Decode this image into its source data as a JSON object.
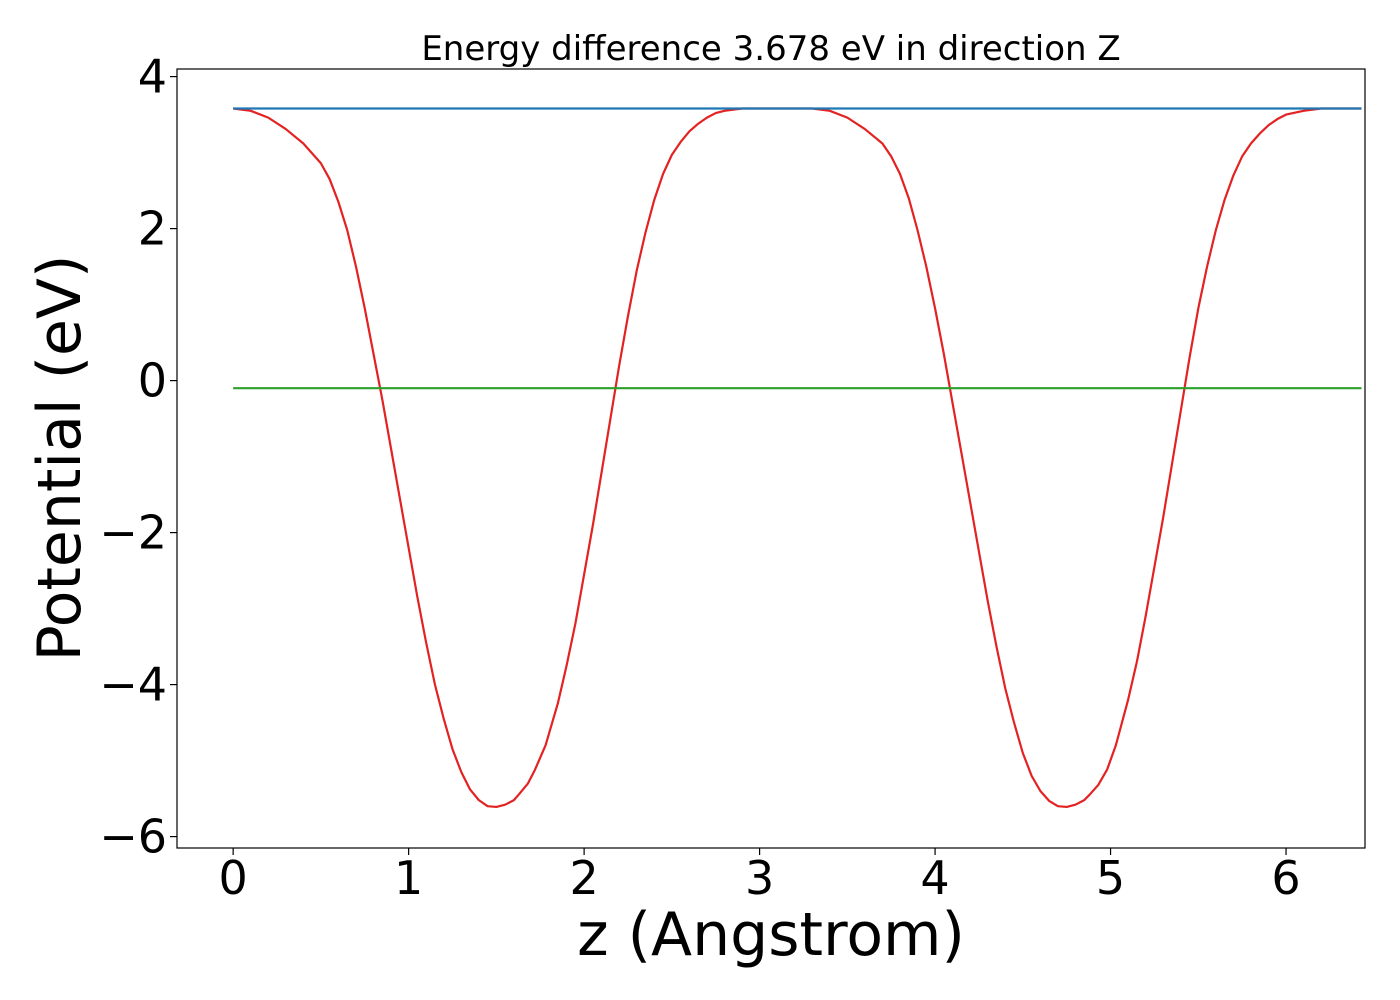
{
  "chart_data": {
    "type": "line",
    "title": "Energy difference 3.678 eV in direction Z",
    "xlabel": "z (Angstrom)",
    "ylabel": "Potential (eV)",
    "xlim": [
      -0.32,
      6.45
    ],
    "ylim": [
      -6.15,
      4.1
    ],
    "xticks": [
      0,
      1,
      2,
      3,
      4,
      5,
      6
    ],
    "yticks": [
      -6,
      -4,
      -2,
      0,
      2,
      4
    ],
    "ytick_labels": [
      "−6",
      "−4",
      "−2",
      "0",
      "2",
      "4"
    ],
    "grid": false,
    "legend": "none",
    "series": [
      {
        "color": "#e32222",
        "x": [
          0.0,
          0.1,
          0.2,
          0.3,
          0.4,
          0.5,
          0.55,
          0.6,
          0.65,
          0.7,
          0.75,
          0.8,
          0.85,
          0.9,
          0.95,
          1.0,
          1.05,
          1.1,
          1.15,
          1.2,
          1.25,
          1.3,
          1.35,
          1.4,
          1.45,
          1.5,
          1.55,
          1.6,
          1.63,
          1.68,
          1.72,
          1.78,
          1.85,
          1.9,
          1.95,
          2.0,
          2.05,
          2.1,
          2.15,
          2.2,
          2.25,
          2.3,
          2.35,
          2.4,
          2.45,
          2.5,
          2.55,
          2.6,
          2.65,
          2.7,
          2.75,
          2.8,
          2.9,
          3.0,
          3.1,
          3.2,
          3.25,
          3.3,
          3.4,
          3.5,
          3.6,
          3.7,
          3.75,
          3.8,
          3.85,
          3.9,
          3.95,
          4.0,
          4.05,
          4.1,
          4.15,
          4.2,
          4.25,
          4.3,
          4.35,
          4.4,
          4.45,
          4.5,
          4.55,
          4.6,
          4.65,
          4.7,
          4.75,
          4.8,
          4.85,
          4.88,
          4.93,
          4.98,
          5.03,
          5.1,
          5.15,
          5.2,
          5.25,
          5.3,
          5.35,
          5.4,
          5.45,
          5.5,
          5.55,
          5.6,
          5.65,
          5.7,
          5.75,
          5.8,
          5.85,
          5.9,
          5.95,
          6.0,
          6.1,
          6.2,
          6.3,
          6.43
        ],
        "y": [
          3.58,
          3.55,
          3.46,
          3.31,
          3.12,
          2.86,
          2.65,
          2.35,
          1.98,
          1.5,
          0.95,
          0.35,
          -0.25,
          -0.9,
          -1.55,
          -2.2,
          -2.85,
          -3.45,
          -4.0,
          -4.45,
          -4.85,
          -5.15,
          -5.38,
          -5.52,
          -5.6,
          -5.61,
          -5.58,
          -5.52,
          -5.44,
          -5.3,
          -5.12,
          -4.8,
          -4.25,
          -3.75,
          -3.2,
          -2.55,
          -1.9,
          -1.2,
          -0.5,
          0.2,
          0.85,
          1.45,
          1.95,
          2.38,
          2.72,
          2.97,
          3.14,
          3.28,
          3.38,
          3.46,
          3.52,
          3.55,
          3.58,
          3.58,
          3.58,
          3.58,
          3.58,
          3.58,
          3.55,
          3.46,
          3.31,
          3.12,
          2.95,
          2.72,
          2.4,
          1.98,
          1.5,
          0.95,
          0.35,
          -0.3,
          -0.95,
          -1.6,
          -2.25,
          -2.9,
          -3.5,
          -4.05,
          -4.5,
          -4.9,
          -5.2,
          -5.4,
          -5.53,
          -5.6,
          -5.61,
          -5.58,
          -5.52,
          -5.45,
          -5.32,
          -5.12,
          -4.8,
          -4.2,
          -3.7,
          -3.1,
          -2.45,
          -1.8,
          -1.1,
          -0.4,
          0.3,
          0.95,
          1.5,
          1.98,
          2.38,
          2.7,
          2.95,
          3.12,
          3.25,
          3.36,
          3.44,
          3.5,
          3.55,
          3.58,
          3.58,
          3.58
        ]
      },
      {
        "color": "#1f77b4",
        "x": [
          0.0,
          6.43
        ],
        "y": [
          3.58,
          3.58
        ]
      },
      {
        "color": "#2ca02c",
        "x": [
          0.0,
          6.43
        ],
        "y": [
          -0.1,
          -0.1
        ]
      }
    ]
  }
}
